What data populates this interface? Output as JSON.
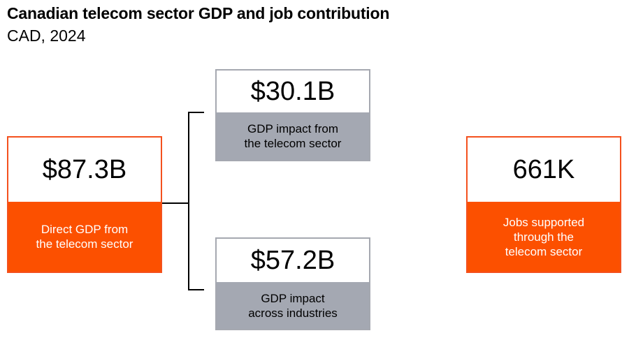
{
  "header": {
    "title": "Canadian telecom sector GDP and job contribution",
    "subtitle": "CAD, 2024"
  },
  "boxes": {
    "direct_gdp": {
      "value": "$87.3B",
      "label": "Direct GDP from\nthe telecom sector"
    },
    "telecom_impact": {
      "value": "$30.1B",
      "label": "GDP impact from\nthe telecom sector"
    },
    "industries_impact": {
      "value": "$57.2B",
      "label": "GDP impact\nacross industries"
    },
    "jobs": {
      "value": "661K",
      "label": "Jobs supported\nthrough the\ntelecom sector"
    }
  },
  "colors": {
    "orange": "#fc5000",
    "gray": "#a4a8b2",
    "connector": "#000000"
  }
}
